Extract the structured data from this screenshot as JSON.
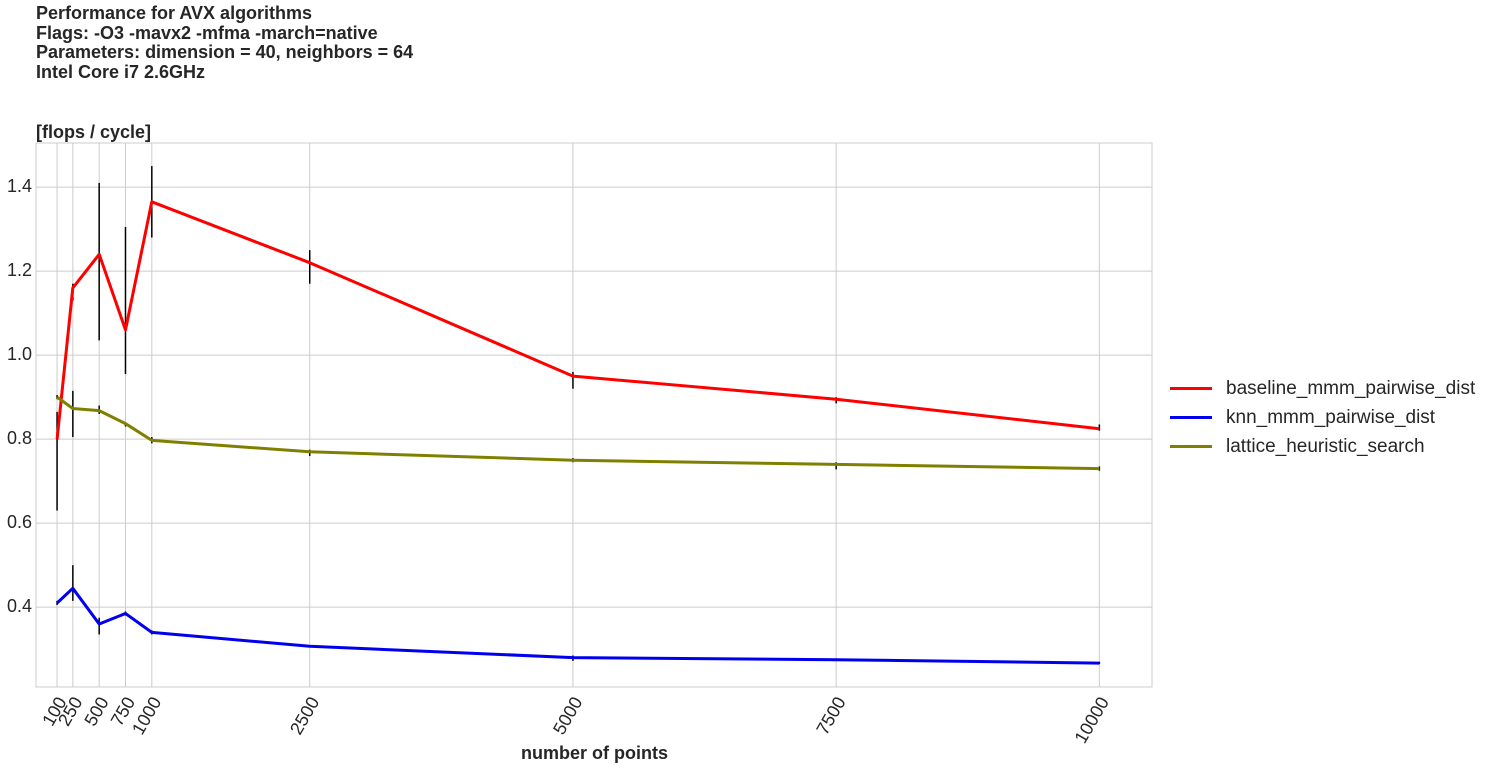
{
  "chart_data": {
    "type": "line",
    "title_lines": [
      "Performance for AVX algorithms",
      "Flags: -O3 -mavx2 -mfma -march=native",
      "Parameters: dimension = 40, neighbors = 64",
      "Intel Core i7 2.6GHz"
    ],
    "ylabel": "[flops / cycle]",
    "xlabel": "number of points",
    "x": [
      100,
      250,
      500,
      750,
      1000,
      2500,
      5000,
      7500,
      10000
    ],
    "x_tick_labels": [
      "100",
      "250",
      "500",
      "750",
      "1000",
      "2500",
      "5000",
      "7500",
      "10000"
    ],
    "y_ticks": [
      0.4,
      0.6,
      0.8,
      1.0,
      1.2,
      1.4
    ],
    "y_tick_labels": [
      "0.4",
      "0.6",
      "0.8",
      "1.0",
      "1.2",
      "1.4"
    ],
    "xlim": [
      -100,
      10500
    ],
    "ylim": [
      0.21,
      1.505
    ],
    "grid": true,
    "legend_position": "right",
    "series": [
      {
        "name": "baseline_mmm_pairwise_dist",
        "color": "#ff0000",
        "values": [
          0.8,
          1.16,
          1.24,
          1.06,
          1.365,
          1.22,
          0.95,
          0.895,
          0.825
        ],
        "error_low": [
          0.63,
          1.13,
          1.035,
          0.955,
          1.28,
          1.17,
          0.92,
          0.885,
          0.82
        ],
        "error_high": [
          0.865,
          1.17,
          1.41,
          1.305,
          1.45,
          1.25,
          0.96,
          0.9,
          0.835
        ]
      },
      {
        "name": "knn_mmm_pairwise_dist",
        "color": "#0000ee",
        "values": [
          0.41,
          0.445,
          0.36,
          0.385,
          0.34,
          0.307,
          0.28,
          0.275,
          0.267
        ],
        "error_low": [
          0.405,
          0.415,
          0.335,
          0.38,
          0.335,
          0.305,
          0.272,
          0.272,
          0.265
        ],
        "error_high": [
          0.415,
          0.5,
          0.375,
          0.39,
          0.345,
          0.31,
          0.285,
          0.278,
          0.27
        ]
      },
      {
        "name": "lattice_heuristic_search",
        "color": "#808000",
        "values": [
          0.9,
          0.873,
          0.868,
          0.837,
          0.797,
          0.77,
          0.75,
          0.74,
          0.73
        ],
        "error_low": [
          0.895,
          0.805,
          0.86,
          0.83,
          0.79,
          0.76,
          0.745,
          0.728,
          0.725
        ],
        "error_high": [
          0.905,
          0.915,
          0.88,
          0.84,
          0.805,
          0.775,
          0.755,
          0.745,
          0.735
        ]
      }
    ]
  }
}
